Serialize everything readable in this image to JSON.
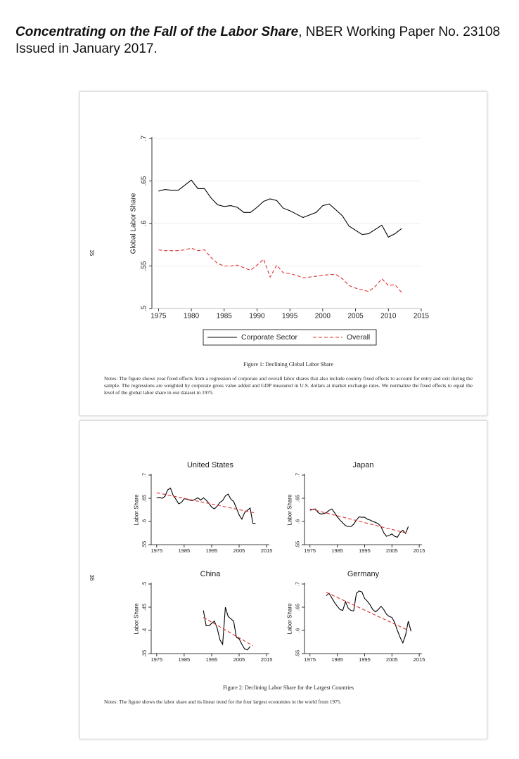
{
  "header": {
    "title_italic": "Concentrating on the Fall of the Labor Share",
    "rest": ", NBER Working Paper No. 23108 Issued in January 2017."
  },
  "pages": [
    {
      "page_number": "35",
      "caption": "Figure 1: Declining Global Labor Share",
      "notes": "Notes: The figure shows year fixed effects from a regression of corporate and overall labor shares that also include country fixed effects to account for entry and exit during the sample. The regressions are weighted by corporate gross value added and GDP measured in U.S. dollars at market exchange rates. We normalize the fixed effects to equal the level of the global labor share in our dataset in 1975."
    },
    {
      "page_number": "36",
      "caption": "Figure 2: Declining Labor Share for the Largest Countries",
      "notes": "Notes: The figure shows the labor share and its linear trend for the four largest economies in the world from 1975."
    }
  ],
  "chart_data": [
    {
      "type": "line",
      "ylabel": "Global Labor Share",
      "grid": true,
      "legend": "bottom",
      "xlim": [
        1974,
        2015
      ],
      "xticks": [
        1975,
        1980,
        1985,
        1990,
        1995,
        2000,
        2005,
        2010,
        2015
      ],
      "ylim": [
        0.5,
        0.7
      ],
      "yticks": [
        {
          "value": 0.5,
          "label": ".5"
        },
        {
          "value": 0.55,
          "label": ".55"
        },
        {
          "value": 0.6,
          "label": ".6"
        },
        {
          "value": 0.65,
          "label": ".65"
        },
        {
          "value": 0.7,
          "label": ".7"
        }
      ],
      "series": [
        {
          "name": "Corporate Sector",
          "color": "#000000",
          "dashed": false,
          "x": [
            1975,
            1976,
            1977,
            1978,
            1979,
            1980,
            1981,
            1982,
            1983,
            1984,
            1985,
            1986,
            1987,
            1988,
            1989,
            1990,
            1991,
            1992,
            1993,
            1994,
            1995,
            1996,
            1997,
            1998,
            1999,
            2000,
            2001,
            2002,
            2003,
            2004,
            2005,
            2006,
            2007,
            2008,
            2009,
            2010,
            2011,
            2012
          ],
          "values": [
            0.638,
            0.64,
            0.639,
            0.639,
            0.645,
            0.651,
            0.641,
            0.641,
            0.63,
            0.622,
            0.62,
            0.621,
            0.619,
            0.613,
            0.613,
            0.619,
            0.626,
            0.629,
            0.627,
            0.618,
            0.615,
            0.611,
            0.607,
            0.61,
            0.613,
            0.621,
            0.623,
            0.616,
            0.609,
            0.597,
            0.592,
            0.587,
            0.588,
            0.593,
            0.598,
            0.584,
            0.588,
            0.594
          ]
        },
        {
          "name": "Overall",
          "color": "#e03030",
          "dashed": true,
          "x": [
            1975,
            1976,
            1977,
            1978,
            1979,
            1980,
            1981,
            1982,
            1983,
            1984,
            1985,
            1986,
            1987,
            1988,
            1989,
            1990,
            1991,
            1992,
            1993,
            1994,
            1995,
            1996,
            1997,
            1998,
            1999,
            2000,
            2001,
            2002,
            2003,
            2004,
            2005,
            2006,
            2007,
            2008,
            2009,
            2010,
            2011,
            2012
          ],
          "values": [
            0.569,
            0.568,
            0.568,
            0.568,
            0.569,
            0.571,
            0.568,
            0.569,
            0.56,
            0.553,
            0.55,
            0.55,
            0.551,
            0.548,
            0.545,
            0.551,
            0.558,
            0.537,
            0.551,
            0.542,
            0.541,
            0.539,
            0.536,
            0.537,
            0.538,
            0.539,
            0.54,
            0.54,
            0.535,
            0.527,
            0.524,
            0.522,
            0.52,
            0.526,
            0.535,
            0.527,
            0.528,
            0.519
          ]
        }
      ]
    },
    {
      "type": "line",
      "title": "United States",
      "ylabel": "Labor Share",
      "grid": false,
      "xlim": [
        1973,
        2016
      ],
      "xticks": [
        1975,
        1985,
        1995,
        2005,
        2015
      ],
      "ylim": [
        0.55,
        0.7
      ],
      "yticks": [
        {
          "value": 0.55,
          "label": ".55"
        },
        {
          "value": 0.6,
          "label": ".6"
        },
        {
          "value": 0.65,
          "label": ".65"
        },
        {
          "value": 0.7,
          "label": ".7"
        }
      ],
      "series": [
        {
          "color": "#000000",
          "dashed": false,
          "x": [
            1975,
            1976,
            1977,
            1978,
            1979,
            1980,
            1981,
            1982,
            1983,
            1984,
            1985,
            1986,
            1987,
            1988,
            1989,
            1990,
            1991,
            1992,
            1993,
            1994,
            1995,
            1996,
            1997,
            1998,
            1999,
            2000,
            2001,
            2002,
            2003,
            2004,
            2005,
            2006,
            2007,
            2008,
            2009,
            2010,
            2011
          ],
          "values": [
            0.651,
            0.652,
            0.65,
            0.654,
            0.668,
            0.672,
            0.656,
            0.648,
            0.638,
            0.641,
            0.649,
            0.648,
            0.646,
            0.645,
            0.648,
            0.651,
            0.646,
            0.651,
            0.646,
            0.639,
            0.631,
            0.627,
            0.633,
            0.641,
            0.645,
            0.655,
            0.659,
            0.648,
            0.643,
            0.629,
            0.614,
            0.605,
            0.619,
            0.624,
            0.629,
            0.596,
            0.596
          ]
        },
        {
          "color": "#e03030",
          "dashed": true,
          "x": [
            1975,
            2011
          ],
          "values": [
            0.662,
            0.618
          ]
        }
      ]
    },
    {
      "type": "line",
      "title": "Japan",
      "ylabel": "Labor Share",
      "grid": false,
      "xlim": [
        1973,
        2016
      ],
      "xticks": [
        1975,
        1985,
        1995,
        2005,
        2015
      ],
      "ylim": [
        0.55,
        0.7
      ],
      "yticks": [
        {
          "value": 0.55,
          "label": ".55"
        },
        {
          "value": 0.6,
          "label": ".6"
        },
        {
          "value": 0.65,
          "label": ".65"
        },
        {
          "value": 0.7,
          "label": ".7"
        }
      ],
      "series": [
        {
          "color": "#000000",
          "dashed": false,
          "x": [
            1975,
            1976,
            1977,
            1978,
            1979,
            1980,
            1981,
            1982,
            1983,
            1984,
            1985,
            1986,
            1987,
            1988,
            1989,
            1990,
            1991,
            1992,
            1993,
            1994,
            1995,
            1996,
            1997,
            1998,
            1999,
            2000,
            2001,
            2002,
            2003,
            2004,
            2005,
            2006,
            2007,
            2008,
            2009,
            2010,
            2011
          ],
          "values": [
            0.624,
            0.626,
            0.627,
            0.619,
            0.616,
            0.617,
            0.619,
            0.624,
            0.627,
            0.619,
            0.61,
            0.603,
            0.597,
            0.591,
            0.589,
            0.589,
            0.594,
            0.603,
            0.61,
            0.609,
            0.609,
            0.605,
            0.603,
            0.6,
            0.598,
            0.595,
            0.589,
            0.576,
            0.568,
            0.57,
            0.573,
            0.568,
            0.566,
            0.576,
            0.581,
            0.574,
            0.589
          ]
        },
        {
          "color": "#e03030",
          "dashed": true,
          "x": [
            1975,
            2011
          ],
          "values": [
            0.627,
            0.574
          ]
        }
      ]
    },
    {
      "type": "line",
      "title": "China",
      "ylabel": "Labor Share",
      "grid": false,
      "xlim": [
        1973,
        2016
      ],
      "xticks": [
        1975,
        1985,
        1995,
        2005,
        2015
      ],
      "ylim": [
        0.35,
        0.5
      ],
      "yticks": [
        {
          "value": 0.35,
          "label": ".35"
        },
        {
          "value": 0.4,
          "label": ".4"
        },
        {
          "value": 0.45,
          "label": ".45"
        },
        {
          "value": 0.5,
          "label": ".5"
        }
      ],
      "series": [
        {
          "color": "#000000",
          "dashed": false,
          "x": [
            1992,
            1993,
            1994,
            1995,
            1996,
            1997,
            1998,
            1999,
            2000,
            2001,
            2002,
            2003,
            2004,
            2005,
            2006,
            2007,
            2008,
            2009
          ],
          "values": [
            0.443,
            0.41,
            0.41,
            0.415,
            0.42,
            0.405,
            0.38,
            0.37,
            0.45,
            0.43,
            0.425,
            0.42,
            0.385,
            0.382,
            0.37,
            0.36,
            0.358,
            0.365
          ]
        },
        {
          "color": "#e03030",
          "dashed": true,
          "x": [
            1992,
            2010
          ],
          "values": [
            0.428,
            0.367
          ]
        }
      ]
    },
    {
      "type": "line",
      "title": "Germany",
      "ylabel": "Labor Share",
      "grid": false,
      "xlim": [
        1973,
        2016
      ],
      "xticks": [
        1975,
        1985,
        1995,
        2005,
        2015
      ],
      "ylim": [
        0.55,
        0.7
      ],
      "yticks": [
        {
          "value": 0.55,
          "label": ".55"
        },
        {
          "value": 0.6,
          "label": ".6"
        },
        {
          "value": 0.65,
          "label": ".65"
        },
        {
          "value": 0.7,
          "label": ".7"
        }
      ],
      "series": [
        {
          "color": "#000000",
          "dashed": false,
          "x": [
            1981,
            1982,
            1983,
            1984,
            1985,
            1986,
            1987,
            1988,
            1989,
            1990,
            1991,
            1992,
            1993,
            1994,
            1995,
            1996,
            1997,
            1998,
            1999,
            2000,
            2001,
            2002,
            2003,
            2004,
            2005,
            2006,
            2007,
            2008,
            2009,
            2010,
            2011,
            2012
          ],
          "values": [
            0.675,
            0.68,
            0.67,
            0.66,
            0.652,
            0.645,
            0.643,
            0.662,
            0.648,
            0.643,
            0.642,
            0.68,
            0.685,
            0.683,
            0.669,
            0.663,
            0.655,
            0.645,
            0.64,
            0.645,
            0.652,
            0.645,
            0.635,
            0.63,
            0.628,
            0.617,
            0.6,
            0.585,
            0.573,
            0.59,
            0.62,
            0.598
          ]
        },
        {
          "color": "#e03030",
          "dashed": true,
          "x": [
            1981,
            2011
          ],
          "values": [
            0.682,
            0.6
          ]
        }
      ]
    }
  ]
}
